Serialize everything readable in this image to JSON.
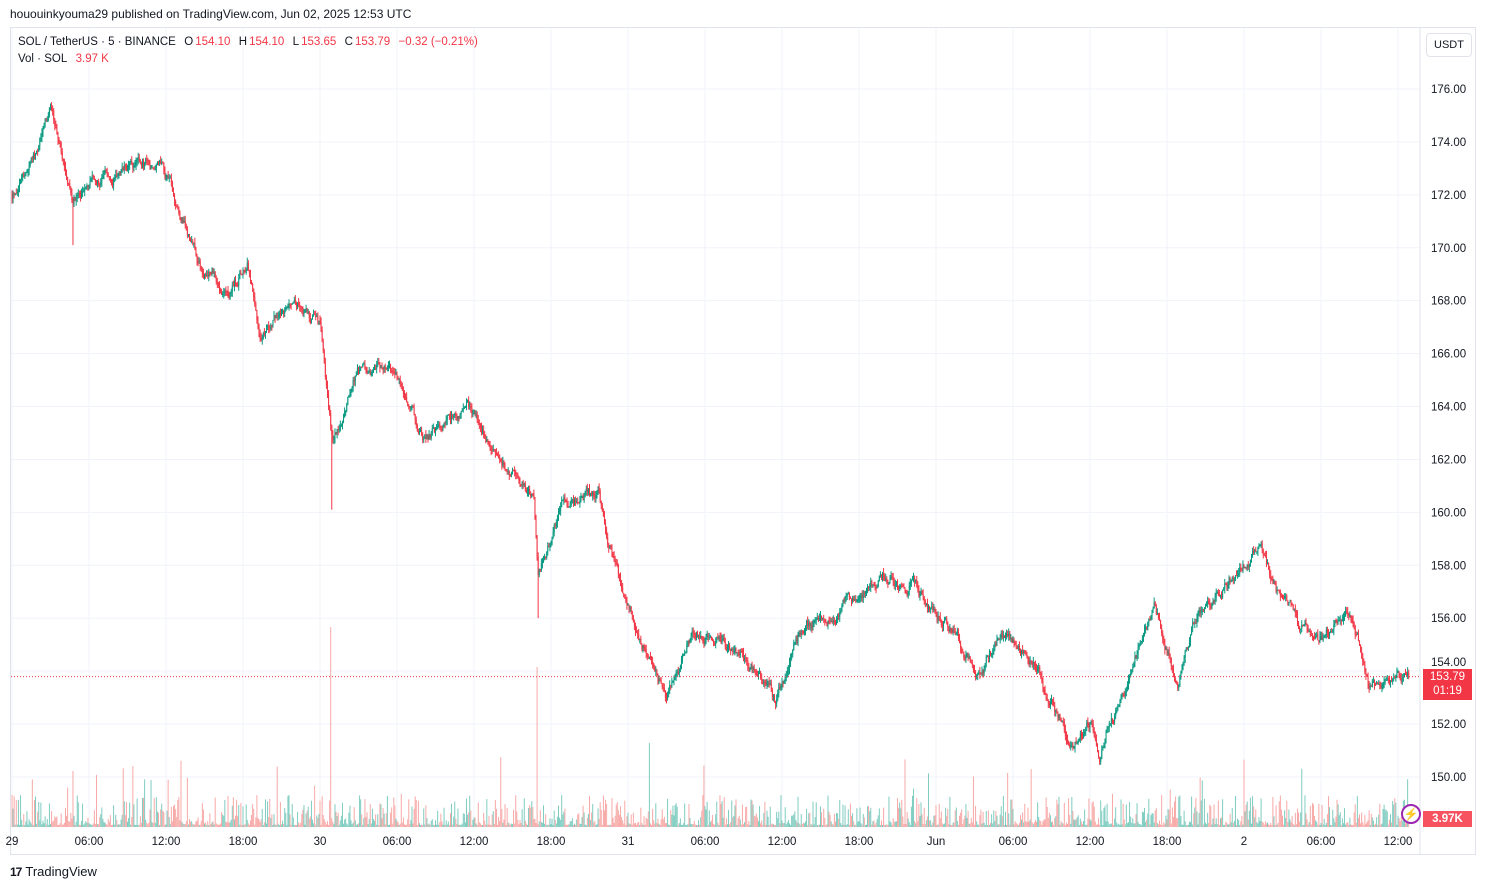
{
  "publisher": "hououinkyouma29 published on TradingView.com, Jun 02, 2025 12:53 UTC",
  "legend": {
    "symbol": "SOL / TetherUS · 5 · BINANCE",
    "open_label": "O",
    "open": "154.10",
    "high_label": "H",
    "high": "154.10",
    "low_label": "L",
    "low": "153.65",
    "close_label": "C",
    "close": "153.79",
    "change": "−0.32 (−0.21%)",
    "vol_label": "Vol · SOL",
    "vol_value": "3.97 K"
  },
  "currency_button": "USDT",
  "price_tag": {
    "price": "153.79",
    "countdown": "01:19"
  },
  "volume_tag": "3.97K",
  "footer": {
    "logo_text": "TradingView"
  },
  "colors": {
    "up": "#089981",
    "down": "#f23645",
    "vol_up": "#7fccc0",
    "vol_down": "#f7a9a7",
    "grid": "#f0f3fa"
  },
  "chart_data": {
    "type": "candlestick",
    "symbol": "SOLUSDT",
    "interval_minutes": 5,
    "ylim": [
      149.0,
      177.5
    ],
    "y_ticks": [
      "176.00",
      "174.00",
      "172.00",
      "170.00",
      "168.00",
      "166.00",
      "164.00",
      "162.00",
      "160.00",
      "158.00",
      "156.00",
      "154.00",
      "152.00",
      "150.00"
    ],
    "x_ticks": [
      {
        "t": "2025-05-29T00:00",
        "label": "29"
      },
      {
        "t": "2025-05-29T06:00",
        "label": "06:00"
      },
      {
        "t": "2025-05-29T12:00",
        "label": "12:00"
      },
      {
        "t": "2025-05-29T18:00",
        "label": "18:00"
      },
      {
        "t": "2025-05-30T00:00",
        "label": "30"
      },
      {
        "t": "2025-05-30T06:00",
        "label": "06:00"
      },
      {
        "t": "2025-05-30T12:00",
        "label": "12:00"
      },
      {
        "t": "2025-05-30T18:00",
        "label": "18:00"
      },
      {
        "t": "2025-05-31T00:00",
        "label": "31"
      },
      {
        "t": "2025-05-31T06:00",
        "label": "06:00"
      },
      {
        "t": "2025-05-31T12:00",
        "label": "12:00"
      },
      {
        "t": "2025-05-31T18:00",
        "label": "18:00"
      },
      {
        "t": "2025-06-01T00:00",
        "label": "Jun"
      },
      {
        "t": "2025-06-01T06:00",
        "label": "06:00"
      },
      {
        "t": "2025-06-01T12:00",
        "label": "12:00"
      },
      {
        "t": "2025-06-01T18:00",
        "label": "18:00"
      },
      {
        "t": "2025-06-02T00:00",
        "label": "2"
      },
      {
        "t": "2025-06-02T06:00",
        "label": "06:00"
      },
      {
        "t": "2025-06-02T12:00",
        "label": "12:00"
      }
    ],
    "price_path": [
      [
        "2025-05-29T00:00",
        172.0
      ],
      [
        "2025-05-29T01:25",
        173.3
      ],
      [
        "2025-05-29T03:00",
        175.2
      ],
      [
        "2025-05-29T04:45",
        172.0
      ],
      [
        "2025-05-29T08:45",
        173.0
      ],
      [
        "2025-05-29T11:40",
        173.1
      ],
      [
        "2025-05-29T14:30",
        169.5
      ],
      [
        "2025-05-29T17:00",
        168.4
      ],
      [
        "2025-05-29T18:20",
        169.5
      ],
      [
        "2025-05-29T19:20",
        166.5
      ],
      [
        "2025-05-29T21:50",
        168.2
      ],
      [
        "2025-05-30T00:00",
        166.9
      ],
      [
        "2025-05-30T01:00",
        162.7
      ],
      [
        "2025-05-30T02:45",
        165.2
      ],
      [
        "2025-05-30T05:20",
        165.6
      ],
      [
        "2025-05-30T08:00",
        162.7
      ],
      [
        "2025-05-30T11:30",
        163.9
      ],
      [
        "2025-05-30T13:30",
        162.4
      ],
      [
        "2025-05-30T16:40",
        160.5
      ],
      [
        "2025-05-30T17:00",
        157.6
      ],
      [
        "2025-05-30T19:00",
        160.5
      ],
      [
        "2025-05-30T21:40",
        160.7
      ],
      [
        "2025-05-30T23:15",
        157.5
      ],
      [
        "2025-05-31T01:05",
        155.2
      ],
      [
        "2025-05-31T03:00",
        152.7
      ],
      [
        "2025-05-31T05:00",
        155.4
      ],
      [
        "2025-05-31T08:50",
        154.8
      ],
      [
        "2025-05-31T11:30",
        152.9
      ],
      [
        "2025-05-31T13:30",
        155.5
      ],
      [
        "2025-05-31T16:40",
        156.5
      ],
      [
        "2025-05-31T19:40",
        157.6
      ],
      [
        "2025-05-31T22:00",
        157.4
      ],
      [
        "2025-06-01T01:50",
        155.2
      ],
      [
        "2025-06-01T03:20",
        153.8
      ],
      [
        "2025-06-01T05:00",
        155.5
      ],
      [
        "2025-06-01T08:05",
        154.0
      ],
      [
        "2025-06-01T10:25",
        151.2
      ],
      [
        "2025-06-01T12:00",
        152.1
      ],
      [
        "2025-06-01T12:45",
        151.0
      ],
      [
        "2025-06-01T15:05",
        153.6
      ],
      [
        "2025-06-01T17:00",
        156.3
      ],
      [
        "2025-06-01T18:50",
        153.6
      ],
      [
        "2025-06-01T20:10",
        155.7
      ],
      [
        "2025-06-01T22:50",
        157.4
      ],
      [
        "2025-06-02T01:20",
        158.7
      ],
      [
        "2025-06-02T03:05",
        156.3
      ],
      [
        "2025-06-02T05:50",
        155.2
      ],
      [
        "2025-06-02T08:20",
        156.3
      ],
      [
        "2025-06-02T09:45",
        153.6
      ],
      [
        "2025-06-02T11:40",
        154.0
      ],
      [
        "2025-06-02T12:50",
        153.79
      ]
    ],
    "wick_extremes": [
      {
        "t": "2025-05-29T04:45",
        "low": 170.1
      },
      {
        "t": "2025-05-30T00:55",
        "low": 160.1
      },
      {
        "t": "2025-05-30T17:00",
        "low": 156.0
      }
    ],
    "last_price": 153.79,
    "last_volume": "3.97K",
    "volume_spikes": [
      {
        "t": "2025-05-30T00:50",
        "rel": 1.0
      },
      {
        "t": "2025-05-30T16:55",
        "rel": 0.8
      },
      {
        "t": "2025-05-31T01:40",
        "rel": 0.42
      },
      {
        "t": "2025-05-29T04:45",
        "rel": 0.28
      }
    ]
  }
}
